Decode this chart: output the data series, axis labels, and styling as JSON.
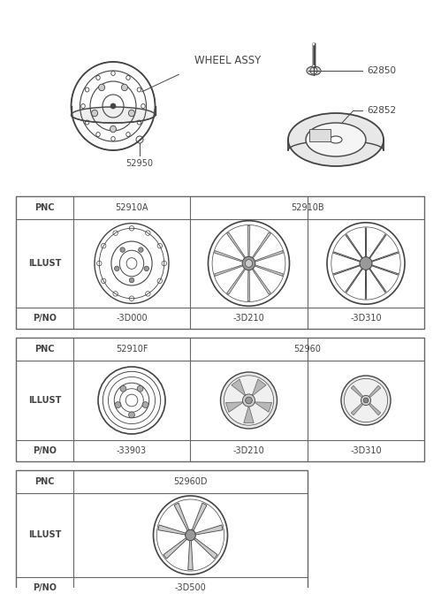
{
  "bg_color": "#ffffff",
  "line_color": "#444444",
  "table_border_color": "#666666",
  "wheel_assy_label": "WHEEL ASSY",
  "part_52950": "52950",
  "part_62850": "62850",
  "part_62852": "62852",
  "table1": {
    "pnc_label": "PNC",
    "illust_label": "ILLUST",
    "pno_label": "P/NO",
    "pnc_col1": "52910A",
    "pnc_col23": "52910B",
    "pno_col1": "-3D000",
    "pno_col2": "-3D210",
    "pno_col3": "-3D310"
  },
  "table2": {
    "pnc_label": "PNC",
    "illust_label": "ILLUST",
    "pno_label": "P/NO",
    "pnc_col1": "52910F",
    "pnc_col23": "52960",
    "pno_col1": "-33903",
    "pno_col2": "-3D210",
    "pno_col3": "-3D310"
  },
  "table3": {
    "pnc_label": "PNC",
    "illust_label": "ILLUST",
    "pno_label": "P/NO",
    "pnc_col1": "52960D",
    "pno_col1": "-3D500"
  }
}
